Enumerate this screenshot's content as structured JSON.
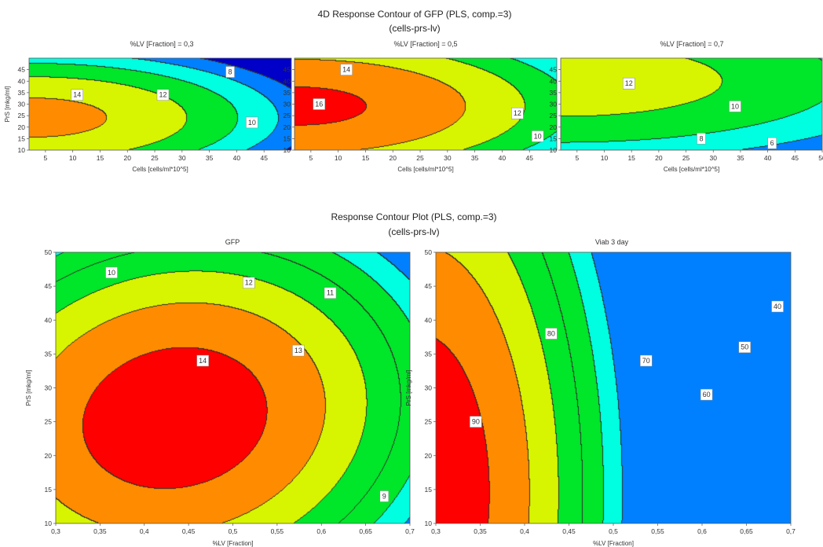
{
  "figure": {
    "top_title": "4D Response Contour of GFP (PLS, comp.=3)",
    "top_subtitle": "(cells-prs-lv)",
    "bottom_title": "Response Contour Plot (PLS, comp.=3)",
    "bottom_subtitle": "(cells-prs-lv)"
  },
  "colors": {
    "red": "#ff0000",
    "orange": "#ff8c00",
    "yellow": "#d7f500",
    "green": "#00e629",
    "cyan": "#00ffe0",
    "blue": "#0080ff",
    "navy": "#0000c8",
    "line": "#2e2e2e"
  },
  "chart_data": [
    {
      "type": "heatmap",
      "style": "filled-contour",
      "title": "%LV [Fraction] = 0,3",
      "xlabel": "Cells [cells/ml*10^5]",
      "ylabel": "PrS [mkg/ml]",
      "xlim": [
        2,
        50
      ],
      "ylim": [
        10,
        50
      ],
      "xticks": [
        "5",
        "10",
        "15",
        "20",
        "25",
        "30",
        "35",
        "40",
        "45"
      ],
      "yticks": [
        "10",
        "15",
        "20",
        "25",
        "30",
        "35",
        "40",
        "45"
      ],
      "levels": [
        6,
        8,
        10,
        12,
        14,
        16
      ],
      "contour_labels": [
        {
          "text": "14",
          "x": 10.8,
          "y": 34
        },
        {
          "text": "12",
          "x": 26.5,
          "y": 34
        },
        {
          "text": "10",
          "x": 42.8,
          "y": 22
        },
        {
          "text": "8",
          "x": 38.8,
          "y": 44
        }
      ],
      "model": {
        "f0": 14.6,
        "cx": 2.7,
        "cy": 24.0,
        "a": 0.00326,
        "b": 0.00826
      }
    },
    {
      "type": "heatmap",
      "style": "filled-contour",
      "title": "%LV [Fraction] = 0,5",
      "xlabel": "Cells [cells/ml*10^5]",
      "ylabel": "",
      "xlim": [
        2,
        50
      ],
      "ylim": [
        10,
        50
      ],
      "xticks": [
        "5",
        "10",
        "15",
        "20",
        "25",
        "30",
        "35",
        "40",
        "45"
      ],
      "yticks": [
        "10",
        "15",
        "20",
        "25",
        "30",
        "35",
        "40",
        "45"
      ],
      "levels": [
        6,
        8,
        10,
        12,
        14,
        16
      ],
      "contour_labels": [
        {
          "text": "16",
          "x": 6.5,
          "y": 30
        },
        {
          "text": "14",
          "x": 11.5,
          "y": 45
        },
        {
          "text": "12",
          "x": 42.8,
          "y": 26
        },
        {
          "text": "10",
          "x": 46.5,
          "y": 16
        }
      ],
      "model": {
        "f0": 16.4,
        "cx": 2.7,
        "cy": 29.0,
        "a": 0.00255,
        "b": 0.00581
      }
    },
    {
      "type": "heatmap",
      "style": "filled-contour",
      "title": "%LV [Fraction] = 0,7",
      "xlabel": "Cells [cells/ml*10^5]",
      "ylabel": "",
      "xlim": [
        2,
        50
      ],
      "ylim": [
        10,
        50
      ],
      "xticks": [
        "5",
        "10",
        "15",
        "20",
        "25",
        "30",
        "35",
        "40",
        "45",
        "50"
      ],
      "yticks": [
        "10",
        "15",
        "20",
        "25",
        "30",
        "35",
        "40",
        "45"
      ],
      "levels": [
        6,
        8,
        10,
        12,
        14,
        16
      ],
      "contour_labels": [
        {
          "text": "12",
          "x": 14.5,
          "y": 39
        },
        {
          "text": "10",
          "x": 34,
          "y": 29
        },
        {
          "text": "8",
          "x": 27.8,
          "y": 15
        },
        {
          "text": "6",
          "x": 40.8,
          "y": 13
        }
      ],
      "model": {
        "f0": 13.0,
        "cx": 2.7,
        "cy": 40.0,
        "a": 0.00119,
        "b": 0.00419
      }
    },
    {
      "type": "heatmap",
      "style": "filled-contour",
      "title": "GFP",
      "xlabel": "%LV [Fraction]",
      "ylabel": "PrS [mkg/ml]",
      "xlim": [
        0.3,
        0.7
      ],
      "ylim": [
        10,
        50
      ],
      "xticks": [
        "0,3",
        "0,35",
        "0,4",
        "0,45",
        "0,5",
        "0,55",
        "0,6",
        "0,65",
        "0,7"
      ],
      "yticks": [
        "10",
        "15",
        "20",
        "25",
        "30",
        "35",
        "40",
        "45",
        "50"
      ],
      "levels": [
        9,
        10,
        11,
        12,
        13,
        14
      ],
      "contour_labels": [
        {
          "text": "10",
          "x": 0.363,
          "y": 47
        },
        {
          "text": "12",
          "x": 0.518,
          "y": 45.5
        },
        {
          "text": "11",
          "x": 0.61,
          "y": 44
        },
        {
          "text": "13",
          "x": 0.574,
          "y": 35.5
        },
        {
          "text": "14",
          "x": 0.466,
          "y": 34
        },
        {
          "text": "9",
          "x": 0.671,
          "y": 14
        }
      ],
      "model": {
        "f0": 14.6,
        "xc": 0.435,
        "yc": 25.5,
        "sx": 0.1,
        "sy": 10,
        "A": 0.56,
        "B": 0.56,
        "C": -0.12
      }
    },
    {
      "type": "heatmap",
      "style": "filled-contour",
      "title": "Viab 3 day",
      "xlabel": "%LV [Fraction]",
      "ylabel": "PrS [mkg/ml]",
      "xlim": [
        0.3,
        0.7
      ],
      "ylim": [
        10,
        50
      ],
      "xticks": [
        "0,3",
        "0,35",
        "0,4",
        "0,45",
        "0,5",
        "0,55",
        "0,6",
        "0,65",
        "0,7"
      ],
      "yticks": [
        "10",
        "15",
        "20",
        "25",
        "30",
        "35",
        "40",
        "45",
        "50"
      ],
      "levels": [
        40,
        50,
        60,
        70,
        80,
        90
      ],
      "contour_labels": [
        {
          "text": "80",
          "x": 0.43,
          "y": 38
        },
        {
          "text": "70",
          "x": 0.537,
          "y": 34
        },
        {
          "text": "90",
          "x": 0.345,
          "y": 25
        },
        {
          "text": "60",
          "x": 0.605,
          "y": 29
        },
        {
          "text": "50",
          "x": 0.648,
          "y": 36
        },
        {
          "text": "40",
          "x": 0.685,
          "y": 42
        }
      ],
      "model": {
        "f0": 97.0,
        "cx": 0.28,
        "cy": 14.5,
        "a": 1072,
        "b": 0.0127
      }
    }
  ]
}
